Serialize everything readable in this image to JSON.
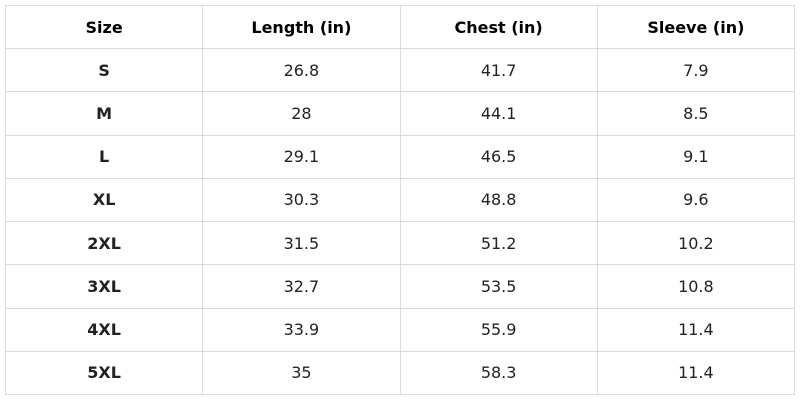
{
  "table": {
    "header": [
      "Size",
      "Length (in)",
      "Chest (in)",
      "Sleeve (in)"
    ],
    "rows": [
      [
        "S",
        "26.8",
        "41.7",
        "7.9"
      ],
      [
        "M",
        "28",
        "44.1",
        "8.5"
      ],
      [
        "L",
        "29.1",
        "46.5",
        "9.1"
      ],
      [
        "XL",
        "30.3",
        "48.8",
        "9.6"
      ],
      [
        "2XL",
        "31.5",
        "51.2",
        "10.2"
      ],
      [
        "3XL",
        "32.7",
        "53.5",
        "10.8"
      ],
      [
        "4XL",
        "33.9",
        "55.9",
        "11.4"
      ],
      [
        "5XL",
        "35",
        "58.3",
        "11.4"
      ]
    ]
  }
}
